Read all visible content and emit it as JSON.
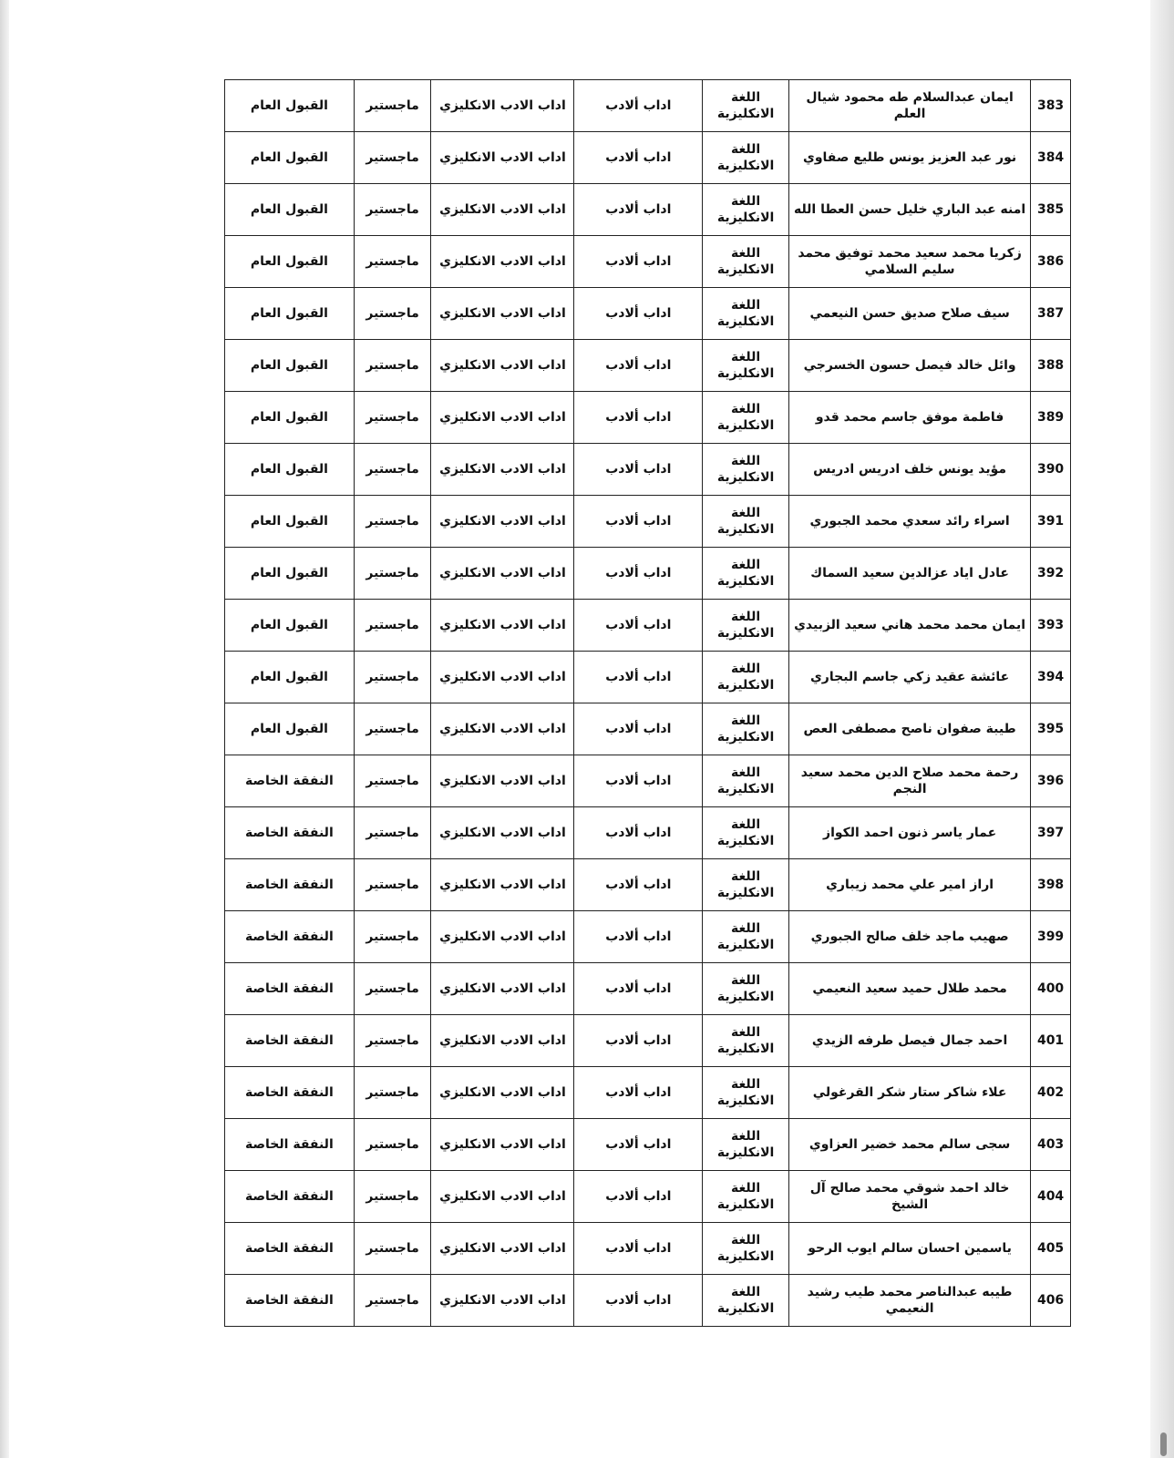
{
  "rows": [
    {
      "no": "383",
      "name": "ايمان عبدالسلام طه محمود شيال العلم",
      "department": "اللغة الانكليزية",
      "college": "اداب ألادب",
      "specialization": "اداب الادب الانكليزي",
      "degree": "ماجستير",
      "admission": "القبول العام"
    },
    {
      "no": "384",
      "name": "نور عبد العزيز يونس طليع صفاوي",
      "department": "اللغة الانكليزية",
      "college": "اداب ألادب",
      "specialization": "اداب الادب الانكليزي",
      "degree": "ماجستير",
      "admission": "القبول العام"
    },
    {
      "no": "385",
      "name": "امنه عبد الباري خليل حسن العطا الله",
      "department": "اللغة الانكليزية",
      "college": "اداب ألادب",
      "specialization": "اداب الادب الانكليزي",
      "degree": "ماجستير",
      "admission": "القبول العام"
    },
    {
      "no": "386",
      "name": "زكريا محمد سعيد محمد توفيق محمد سليم السلامي",
      "department": "اللغة الانكليزية",
      "college": "اداب ألادب",
      "specialization": "اداب الادب الانكليزي",
      "degree": "ماجستير",
      "admission": "القبول العام"
    },
    {
      "no": "387",
      "name": "سيف صلاح صديق حسن النيعمي",
      "department": "اللغة الانكليزية",
      "college": "اداب ألادب",
      "specialization": "اداب الادب الانكليزي",
      "degree": "ماجستير",
      "admission": "القبول العام"
    },
    {
      "no": "388",
      "name": "وائل خالد فيصل حسون الخسرجي",
      "department": "اللغة الانكليزية",
      "college": "اداب ألادب",
      "specialization": "اداب الادب الانكليزي",
      "degree": "ماجستير",
      "admission": "القبول العام"
    },
    {
      "no": "389",
      "name": "فاطمة موفق جاسم محمد قدو",
      "department": "اللغة الانكليزية",
      "college": "اداب ألادب",
      "specialization": "اداب الادب الانكليزي",
      "degree": "ماجستير",
      "admission": "القبول العام"
    },
    {
      "no": "390",
      "name": "مؤيد يونس خلف ادريس ادريس",
      "department": "اللغة الانكليزية",
      "college": "اداب ألادب",
      "specialization": "اداب الادب الانكليزي",
      "degree": "ماجستير",
      "admission": "القبول العام"
    },
    {
      "no": "391",
      "name": "اسراء رائد سعدي محمد الجبوري",
      "department": "اللغة الانكليزية",
      "college": "اداب ألادب",
      "specialization": "اداب الادب الانكليزي",
      "degree": "ماجستير",
      "admission": "القبول العام"
    },
    {
      "no": "392",
      "name": "عادل اياد عزالدين سعيد السماك",
      "department": "اللغة الانكليزية",
      "college": "اداب ألادب",
      "specialization": "اداب الادب الانكليزي",
      "degree": "ماجستير",
      "admission": "القبول العام"
    },
    {
      "no": "393",
      "name": "ايمان محمد محمد هاني سعيد الزبيدي",
      "department": "اللغة الانكليزية",
      "college": "اداب ألادب",
      "specialization": "اداب الادب الانكليزي",
      "degree": "ماجستير",
      "admission": "القبول العام"
    },
    {
      "no": "394",
      "name": "عائشة عقيد زكي جاسم البجاري",
      "department": "اللغة الانكليزية",
      "college": "اداب ألادب",
      "specialization": "اداب الادب الانكليزي",
      "degree": "ماجستير",
      "admission": "القبول العام"
    },
    {
      "no": "395",
      "name": "طيبة صفوان ناصح مصطفى العص",
      "department": "اللغة الانكليزية",
      "college": "اداب ألادب",
      "specialization": "اداب الادب الانكليزي",
      "degree": "ماجستير",
      "admission": "القبول العام"
    },
    {
      "no": "396",
      "name": "رحمة محمد صلاح الدين محمد سعيد النجم",
      "department": "اللغة الانكليزية",
      "college": "اداب ألادب",
      "specialization": "اداب الادب الانكليزي",
      "degree": "ماجستير",
      "admission": "النفقة الخاصة"
    },
    {
      "no": "397",
      "name": "عمار ياسر ذنون احمد الكواز",
      "department": "اللغة الانكليزية",
      "college": "اداب ألادب",
      "specialization": "اداب الادب الانكليزي",
      "degree": "ماجستير",
      "admission": "النفقة الخاصة"
    },
    {
      "no": "398",
      "name": "اراز امير علي محمد زيباري",
      "department": "اللغة الانكليزية",
      "college": "اداب ألادب",
      "specialization": "اداب الادب الانكليزي",
      "degree": "ماجستير",
      "admission": "النفقة الخاصة"
    },
    {
      "no": "399",
      "name": "صهيب ماجد خلف صالح الجبوري",
      "department": "اللغة الانكليزية",
      "college": "اداب ألادب",
      "specialization": "اداب الادب الانكليزي",
      "degree": "ماجستير",
      "admission": "النفقة الخاصة"
    },
    {
      "no": "400",
      "name": "محمد طلال حميد سعيد النعيمي",
      "department": "اللغة الانكليزية",
      "college": "اداب ألادب",
      "specialization": "اداب الادب الانكليزي",
      "degree": "ماجستير",
      "admission": "النفقة الخاصة"
    },
    {
      "no": "401",
      "name": "احمد جمال فيصل طرفه الزيدي",
      "department": "اللغة الانكليزية",
      "college": "اداب ألادب",
      "specialization": "اداب الادب الانكليزي",
      "degree": "ماجستير",
      "admission": "النفقة الخاصة"
    },
    {
      "no": "402",
      "name": "علاء شاكر ستار شكر القرغولي",
      "department": "اللغة الانكليزية",
      "college": "اداب ألادب",
      "specialization": "اداب الادب الانكليزي",
      "degree": "ماجستير",
      "admission": "النفقة الخاصة"
    },
    {
      "no": "403",
      "name": "سجى سالم محمد خضير العزاوي",
      "department": "اللغة الانكليزية",
      "college": "اداب ألادب",
      "specialization": "اداب الادب الانكليزي",
      "degree": "ماجستير",
      "admission": "النفقة الخاصة"
    },
    {
      "no": "404",
      "name": "خالد احمد شوقي محمد صالح آل الشيخ",
      "department": "اللغة الانكليزية",
      "college": "اداب ألادب",
      "specialization": "اداب الادب الانكليزي",
      "degree": "ماجستير",
      "admission": "النفقة الخاصة"
    },
    {
      "no": "405",
      "name": "ياسمين احسان سالم ايوب الرحو",
      "department": "اللغة الانكليزية",
      "college": "اداب ألادب",
      "specialization": "اداب الادب الانكليزي",
      "degree": "ماجستير",
      "admission": "النفقة الخاصة"
    },
    {
      "no": "406",
      "name": "طيبه عبدالناصر محمد طيب رشيد النعيمي",
      "department": "اللغة الانكليزية",
      "college": "اداب ألادب",
      "specialization": "اداب الادب الانكليزي",
      "degree": "ماجستير",
      "admission": "النفقة الخاصة"
    }
  ]
}
